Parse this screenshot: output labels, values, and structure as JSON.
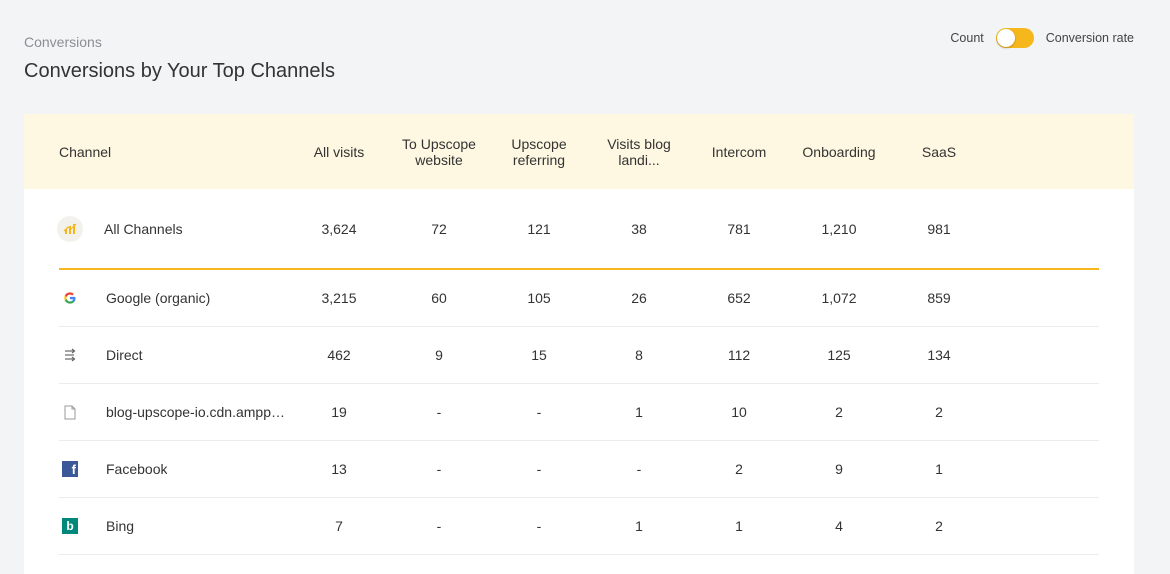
{
  "header": {
    "subtitle": "Conversions",
    "title": "Conversions by Your Top Channels"
  },
  "toggle": {
    "left_label": "Count",
    "right_label": "Conversion rate"
  },
  "table": {
    "columns": [
      "Channel",
      "All visits",
      "To Upscope website",
      "Upscope referring",
      "Visits blog landi...",
      "Intercom",
      "Onboarding",
      "SaaS"
    ],
    "all_row": {
      "name": "All Channels",
      "icon": "all-channels-icon",
      "values": [
        "3,624",
        "72",
        "121",
        "38",
        "781",
        "1,210",
        "981"
      ]
    },
    "rows": [
      {
        "name": "Google (organic)",
        "icon": "google-icon",
        "values": [
          "3,215",
          "60",
          "105",
          "26",
          "652",
          "1,072",
          "859"
        ]
      },
      {
        "name": "Direct",
        "icon": "direct-icon",
        "values": [
          "462",
          "9",
          "15",
          "8",
          "112",
          "125",
          "134"
        ]
      },
      {
        "name": "blog-upscope-io.cdn.ampproject.org",
        "icon": "document-icon",
        "values": [
          "19",
          "-",
          "-",
          "1",
          "10",
          "2",
          "2"
        ]
      },
      {
        "name": "Facebook",
        "icon": "facebook-icon",
        "values": [
          "13",
          "-",
          "-",
          "-",
          "2",
          "9",
          "1"
        ]
      },
      {
        "name": "Bing",
        "icon": "bing-icon",
        "values": [
          "7",
          "-",
          "-",
          "1",
          "1",
          "4",
          "2"
        ]
      }
    ]
  },
  "colors": {
    "accent": "#f5b71b",
    "header_bg": "#fef7e1",
    "page_bg": "#f2f4f5"
  }
}
